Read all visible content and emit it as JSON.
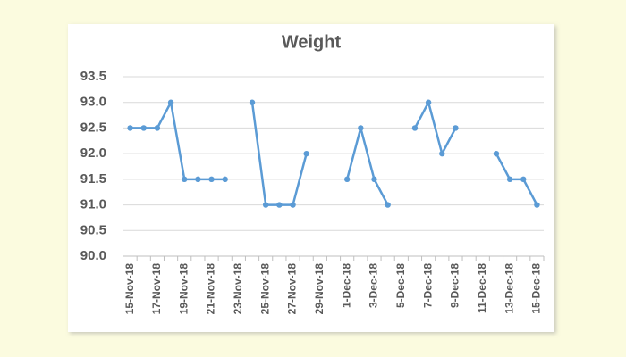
{
  "chart_data": {
    "type": "line",
    "title": "Weight",
    "categories": [
      "15-Nov-18",
      null,
      "17-Nov-18",
      null,
      "19-Nov-18",
      null,
      "21-Nov-18",
      null,
      "23-Nov-18",
      null,
      "25-Nov-18",
      null,
      "27-Nov-18",
      null,
      "29-Nov-18",
      null,
      "1-Dec-18",
      null,
      "3-Dec-18",
      null,
      "5-Dec-18",
      null,
      "7-Dec-18",
      null,
      "9-Dec-18",
      null,
      "11-Dec-18",
      null,
      "13-Dec-18",
      null,
      "15-Dec-18"
    ],
    "values": [
      92.5,
      92.5,
      92.5,
      93.0,
      91.5,
      91.5,
      91.5,
      91.5,
      null,
      93.0,
      91.0,
      91.0,
      91.0,
      92.0,
      null,
      null,
      91.5,
      92.5,
      91.5,
      91.0,
      null,
      92.5,
      93.0,
      92.0,
      92.5,
      null,
      null,
      92.0,
      91.5,
      91.5,
      91.0
    ],
    "color": "#5b9bd5",
    "ylim": [
      90,
      93.5
    ],
    "yticks": [
      {
        "value": 90,
        "label": "90.0"
      },
      90.5,
      {
        "value": 91,
        "label": "91.0"
      },
      91.5,
      {
        "value": 92,
        "label": "92.0"
      },
      92.5,
      {
        "value": 93,
        "label": "93.0"
      },
      93.5
    ],
    "grid": true
  }
}
